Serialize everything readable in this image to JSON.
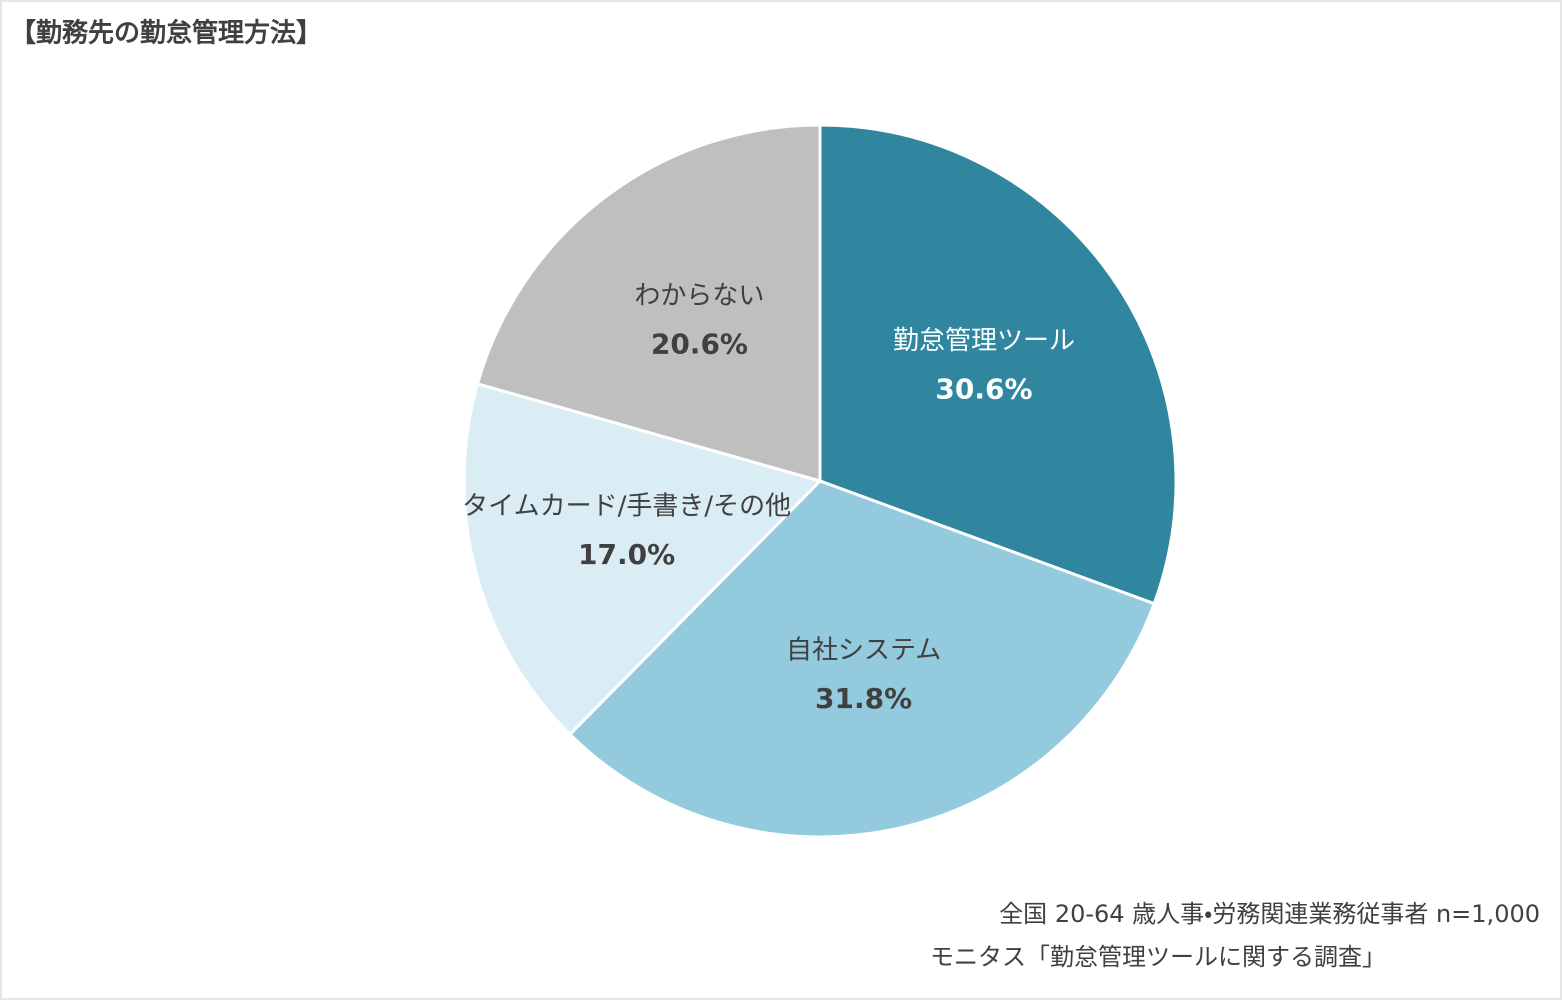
{
  "chart_data": {
    "type": "pie",
    "title": "【勤務先の勤怠管理方法】",
    "categories": [
      "勤怠管理ツール",
      "自社システム",
      "タイムカード/手書き/その他",
      "わからない"
    ],
    "values": [
      30.6,
      31.8,
      17,
      20.6
    ],
    "value_labels": [
      "30.6%",
      "31.8%",
      "17.0%",
      "20.6%"
    ],
    "colors": [
      "#31869f",
      "#93cadd",
      "#daedf4",
      "#bfbfbf"
    ],
    "notes": [
      "全国 20-64 歳人事・労務関連業務従事者 n=1,000",
      "モニタス「勤怠管理ツールに関する調査」"
    ]
  }
}
